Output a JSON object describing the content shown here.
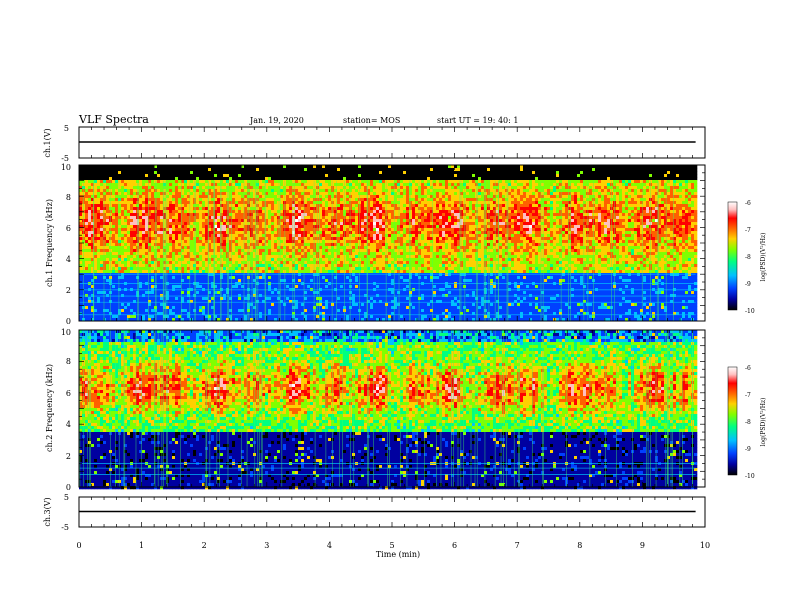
{
  "header": {
    "title": "VLF Spectra",
    "date": "Jan. 19, 2020",
    "station": "station= MOS",
    "start": "start UT = 19: 40: 1"
  },
  "colors": {
    "background": "#ffffff",
    "axes": "#000000",
    "colormap": [
      "#000000",
      "#0000a0",
      "#0040ff",
      "#00c0ff",
      "#00ff80",
      "#80ff00",
      "#ffd000",
      "#ff6000",
      "#ff0000",
      "#ffc0c0",
      "#ffffff"
    ]
  },
  "chart_data": [
    {
      "type": "line",
      "panel": "ch1-voltage",
      "ylabel": "ch.1(V)",
      "ylim": [
        -5,
        5
      ],
      "yticks": [
        "5",
        "-5"
      ],
      "xlim": [
        0,
        10
      ],
      "series": [
        {
          "x": [
            0,
            9.85
          ],
          "values": [
            0,
            0
          ]
        }
      ]
    },
    {
      "type": "heatmap",
      "panel": "ch1-spectrogram",
      "ylabel": "ch.1 Frequency (kHz)",
      "ylim": [
        0,
        10
      ],
      "yticks": [
        "0",
        "2",
        "4",
        "6",
        "8",
        "10"
      ],
      "xlim": [
        0,
        10
      ],
      "data_extent_min": 9.85,
      "colorbar": {
        "label": "log(PSD)(V²/Hz)",
        "range": [
          -10,
          -6
        ],
        "ticks": [
          "-6",
          "-7",
          "-8",
          "-9",
          "-10"
        ]
      },
      "description_of_content": "broadband emission roughly 3–9 kHz with PSD near -7 (red) and strong intensity at 5–8 kHz; saturated band above ~9 kHz; horizontal narrowband lines near 0.4, 1.2, 1.6, 2.0, 2.4, 3.0 kHz"
    },
    {
      "type": "heatmap",
      "panel": "ch2-spectrogram",
      "ylabel": "ch.2 Frequency (kHz)",
      "ylim": [
        0,
        10
      ],
      "yticks": [
        "0",
        "2",
        "4",
        "6",
        "8",
        "10"
      ],
      "xlim": [
        0,
        10
      ],
      "data_extent_min": 9.85,
      "colorbar": {
        "label": "log(PSD)(V²/Hz)",
        "range": [
          -10,
          -6
        ],
        "ticks": [
          "-6",
          "-7",
          "-8",
          "-9",
          "-10"
        ]
      },
      "description_of_content": "emission roughly 3.5–10 kHz peaking near 5–8 kHz (red); dark low-power region below 3 kHz; horizontal lines near 0.8, 1.2, 1.5 kHz"
    },
    {
      "type": "line",
      "panel": "ch3-voltage",
      "ylabel": "ch.3(V)",
      "ylim": [
        -5,
        5
      ],
      "yticks": [
        "5",
        "-5"
      ],
      "xlim": [
        0,
        10
      ],
      "xlabel": "Time (min)",
      "xticks": [
        "0",
        "1",
        "2",
        "3",
        "4",
        "5",
        "6",
        "7",
        "8",
        "9",
        "10"
      ],
      "series": [
        {
          "x": [
            0,
            9.85
          ],
          "values": [
            0,
            0
          ]
        }
      ]
    }
  ]
}
